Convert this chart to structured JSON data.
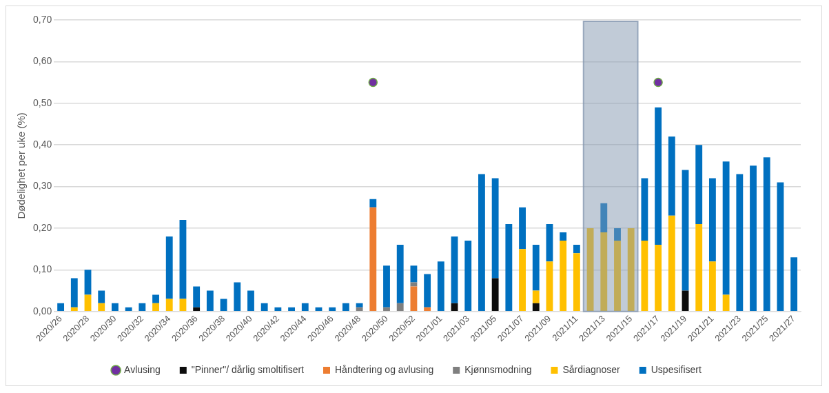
{
  "chart_data": {
    "type": "bar",
    "stacked": true,
    "ylabel": "Dødelighet per uke (%)",
    "categories": [
      "2020/26",
      null,
      "2020/28",
      null,
      "2020/30",
      null,
      "2020/32",
      null,
      "2020/34",
      null,
      "2020/36",
      null,
      "2020/38",
      null,
      "2020/40",
      null,
      "2020/42",
      null,
      "2020/44",
      null,
      "2020/46",
      null,
      "2020/48",
      null,
      "2020/50",
      null,
      "2020/52",
      null,
      "2021/01",
      null,
      "2021/03",
      null,
      "2021/05",
      null,
      "2021/07",
      null,
      "2021/09",
      null,
      "2021/11",
      null,
      "2021/13",
      null,
      "2021/15",
      null,
      "2021/17",
      null,
      "2021/19",
      null,
      "2021/21",
      null,
      "2021/23",
      null,
      "2021/25",
      null,
      "2021/27"
    ],
    "series": [
      {
        "name": "\"Pinner\"/ dårlig smoltifisert",
        "color": "#0d0d0d",
        "values": [
          null,
          null,
          null,
          null,
          null,
          null,
          null,
          null,
          null,
          null,
          0.01,
          null,
          null,
          null,
          null,
          null,
          null,
          null,
          null,
          null,
          null,
          null,
          null,
          null,
          null,
          null,
          null,
          null,
          null,
          0.02,
          null,
          null,
          0.08,
          null,
          null,
          0.02,
          null,
          null,
          null,
          null,
          null,
          null,
          null,
          null,
          null,
          null,
          0.05,
          null,
          null,
          null,
          null,
          null,
          null,
          null,
          null
        ]
      },
      {
        "name": "Håndtering og avlusing",
        "color": "#ed7d31",
        "values": [
          null,
          null,
          null,
          null,
          null,
          null,
          null,
          null,
          null,
          null,
          null,
          null,
          null,
          null,
          null,
          null,
          null,
          null,
          null,
          null,
          null,
          null,
          null,
          0.25,
          null,
          null,
          0.06,
          0.01,
          null,
          null,
          null,
          null,
          null,
          null,
          null,
          null,
          null,
          null,
          null,
          null,
          null,
          null,
          null,
          null,
          null,
          null,
          null,
          null,
          null,
          null,
          null,
          null,
          null,
          null,
          null
        ]
      },
      {
        "name": "Kjønnsmodning",
        "color": "#7f7f7f",
        "values": [
          null,
          null,
          null,
          null,
          null,
          null,
          null,
          null,
          null,
          null,
          null,
          null,
          null,
          null,
          null,
          null,
          null,
          null,
          null,
          null,
          null,
          null,
          0.01,
          null,
          0.01,
          0.02,
          0.01,
          null,
          null,
          null,
          null,
          null,
          null,
          null,
          null,
          null,
          null,
          null,
          null,
          null,
          null,
          null,
          null,
          null,
          null,
          null,
          null,
          null,
          null,
          null,
          null,
          null,
          null,
          null,
          null
        ]
      },
      {
        "name": "Sårdiagnoser",
        "color": "#ffc000",
        "values": [
          null,
          0.01,
          0.04,
          0.02,
          null,
          null,
          null,
          0.02,
          0.03,
          0.03,
          null,
          null,
          null,
          null,
          null,
          null,
          null,
          null,
          null,
          null,
          null,
          null,
          null,
          null,
          null,
          null,
          null,
          null,
          null,
          null,
          null,
          null,
          null,
          null,
          0.15,
          0.03,
          0.12,
          0.17,
          0.14,
          0.2,
          0.19,
          0.17,
          0.2,
          0.17,
          0.16,
          0.23,
          null,
          0.21,
          0.12,
          0.04,
          null,
          null,
          null,
          null,
          null
        ]
      },
      {
        "name": "Uspesifisert",
        "color": "#0070c0",
        "values": [
          0.02,
          0.07,
          0.06,
          0.03,
          0.02,
          0.01,
          0.02,
          0.02,
          0.15,
          0.19,
          0.05,
          0.05,
          0.03,
          0.07,
          0.05,
          0.02,
          0.01,
          0.01,
          0.02,
          0.01,
          0.01,
          0.02,
          0.01,
          0.02,
          0.1,
          0.14,
          0.04,
          0.08,
          0.12,
          0.16,
          0.17,
          0.33,
          0.24,
          0.21,
          0.1,
          0.11,
          0.09,
          0.02,
          0.02,
          null,
          0.07,
          0.03,
          null,
          0.15,
          0.33,
          0.19,
          0.29,
          0.19,
          0.2,
          0.32,
          0.33,
          0.35,
          0.37,
          0.31,
          0.13
        ]
      },
      {
        "name": "Avlusing",
        "type": "scatter",
        "color": "#7030a0",
        "values": [
          null,
          null,
          null,
          null,
          null,
          null,
          null,
          null,
          null,
          null,
          null,
          null,
          null,
          null,
          null,
          null,
          null,
          null,
          null,
          null,
          null,
          null,
          null,
          0.55,
          null,
          null,
          null,
          null,
          null,
          null,
          null,
          null,
          null,
          null,
          null,
          null,
          null,
          null,
          null,
          null,
          null,
          null,
          null,
          null,
          0.55,
          null,
          null,
          null,
          null,
          null,
          null,
          null,
          null,
          null,
          null
        ]
      }
    ],
    "ylim": [
      0,
      0.7
    ],
    "yticks": [
      {
        "value": 0,
        "label": "0,00"
      },
      {
        "value": 0.1,
        "label": "0,10"
      },
      {
        "value": 0.2,
        "label": "0,20"
      },
      {
        "value": 0.3,
        "label": "0,30"
      },
      {
        "value": 0.4,
        "label": "0,40"
      },
      {
        "value": 0.5,
        "label": "0,50"
      },
      {
        "value": 0.6,
        "label": "0,60"
      },
      {
        "value": 0.7,
        "label": "0,70"
      }
    ],
    "bands": [
      {
        "axis": "x",
        "from": "2021/11",
        "to": "2021/15",
        "color": "#8497b0"
      }
    ],
    "grid": "y",
    "legend": "bottom",
    "marker": "circle"
  }
}
